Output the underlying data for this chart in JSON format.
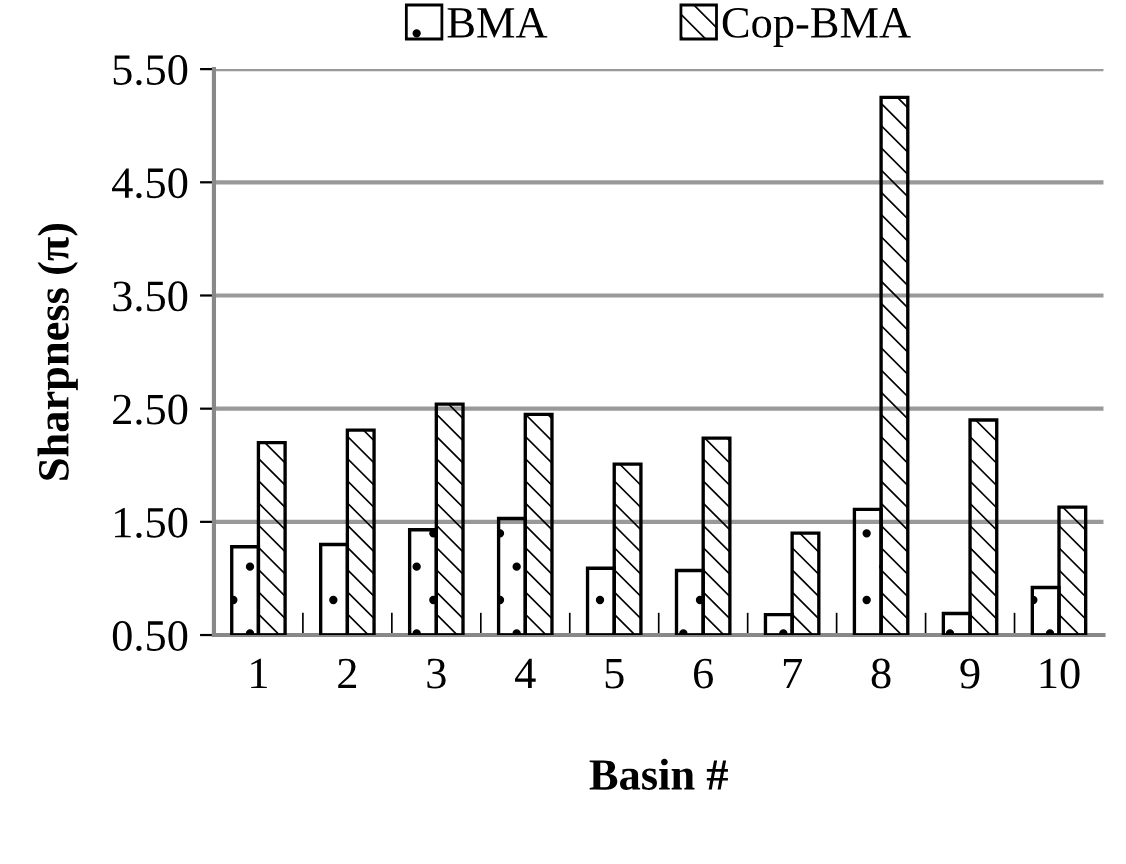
{
  "chart_data": {
    "type": "bar",
    "xlabel": "Basin #",
    "ylabel": "Sharpness (π)",
    "categories": [
      "1",
      "2",
      "3",
      "4",
      "5",
      "6",
      "7",
      "8",
      "9",
      "10"
    ],
    "series": [
      {
        "name": "BMA",
        "color": "#000000",
        "values": [
          1.28,
          1.3,
          1.43,
          1.53,
          1.09,
          1.07,
          0.68,
          1.61,
          0.69,
          0.92
        ]
      },
      {
        "name": "Cop-BMA",
        "color": "#000000",
        "values": [
          2.2,
          2.31,
          2.54,
          2.45,
          2.01,
          2.24,
          1.4,
          5.25,
          2.4,
          1.63
        ]
      }
    ],
    "ylim": [
      0.5,
      5.5
    ],
    "yticks": [
      {
        "value": 0.5,
        "label": "0.50"
      },
      {
        "value": 1.5,
        "label": "1.50"
      },
      {
        "value": 2.5,
        "label": "2.50"
      },
      {
        "value": 3.5,
        "label": "3.50"
      },
      {
        "value": 4.5,
        "label": "4.50"
      },
      {
        "value": 5.5,
        "label": "5.50"
      }
    ],
    "grid": "y",
    "legend": "top"
  }
}
